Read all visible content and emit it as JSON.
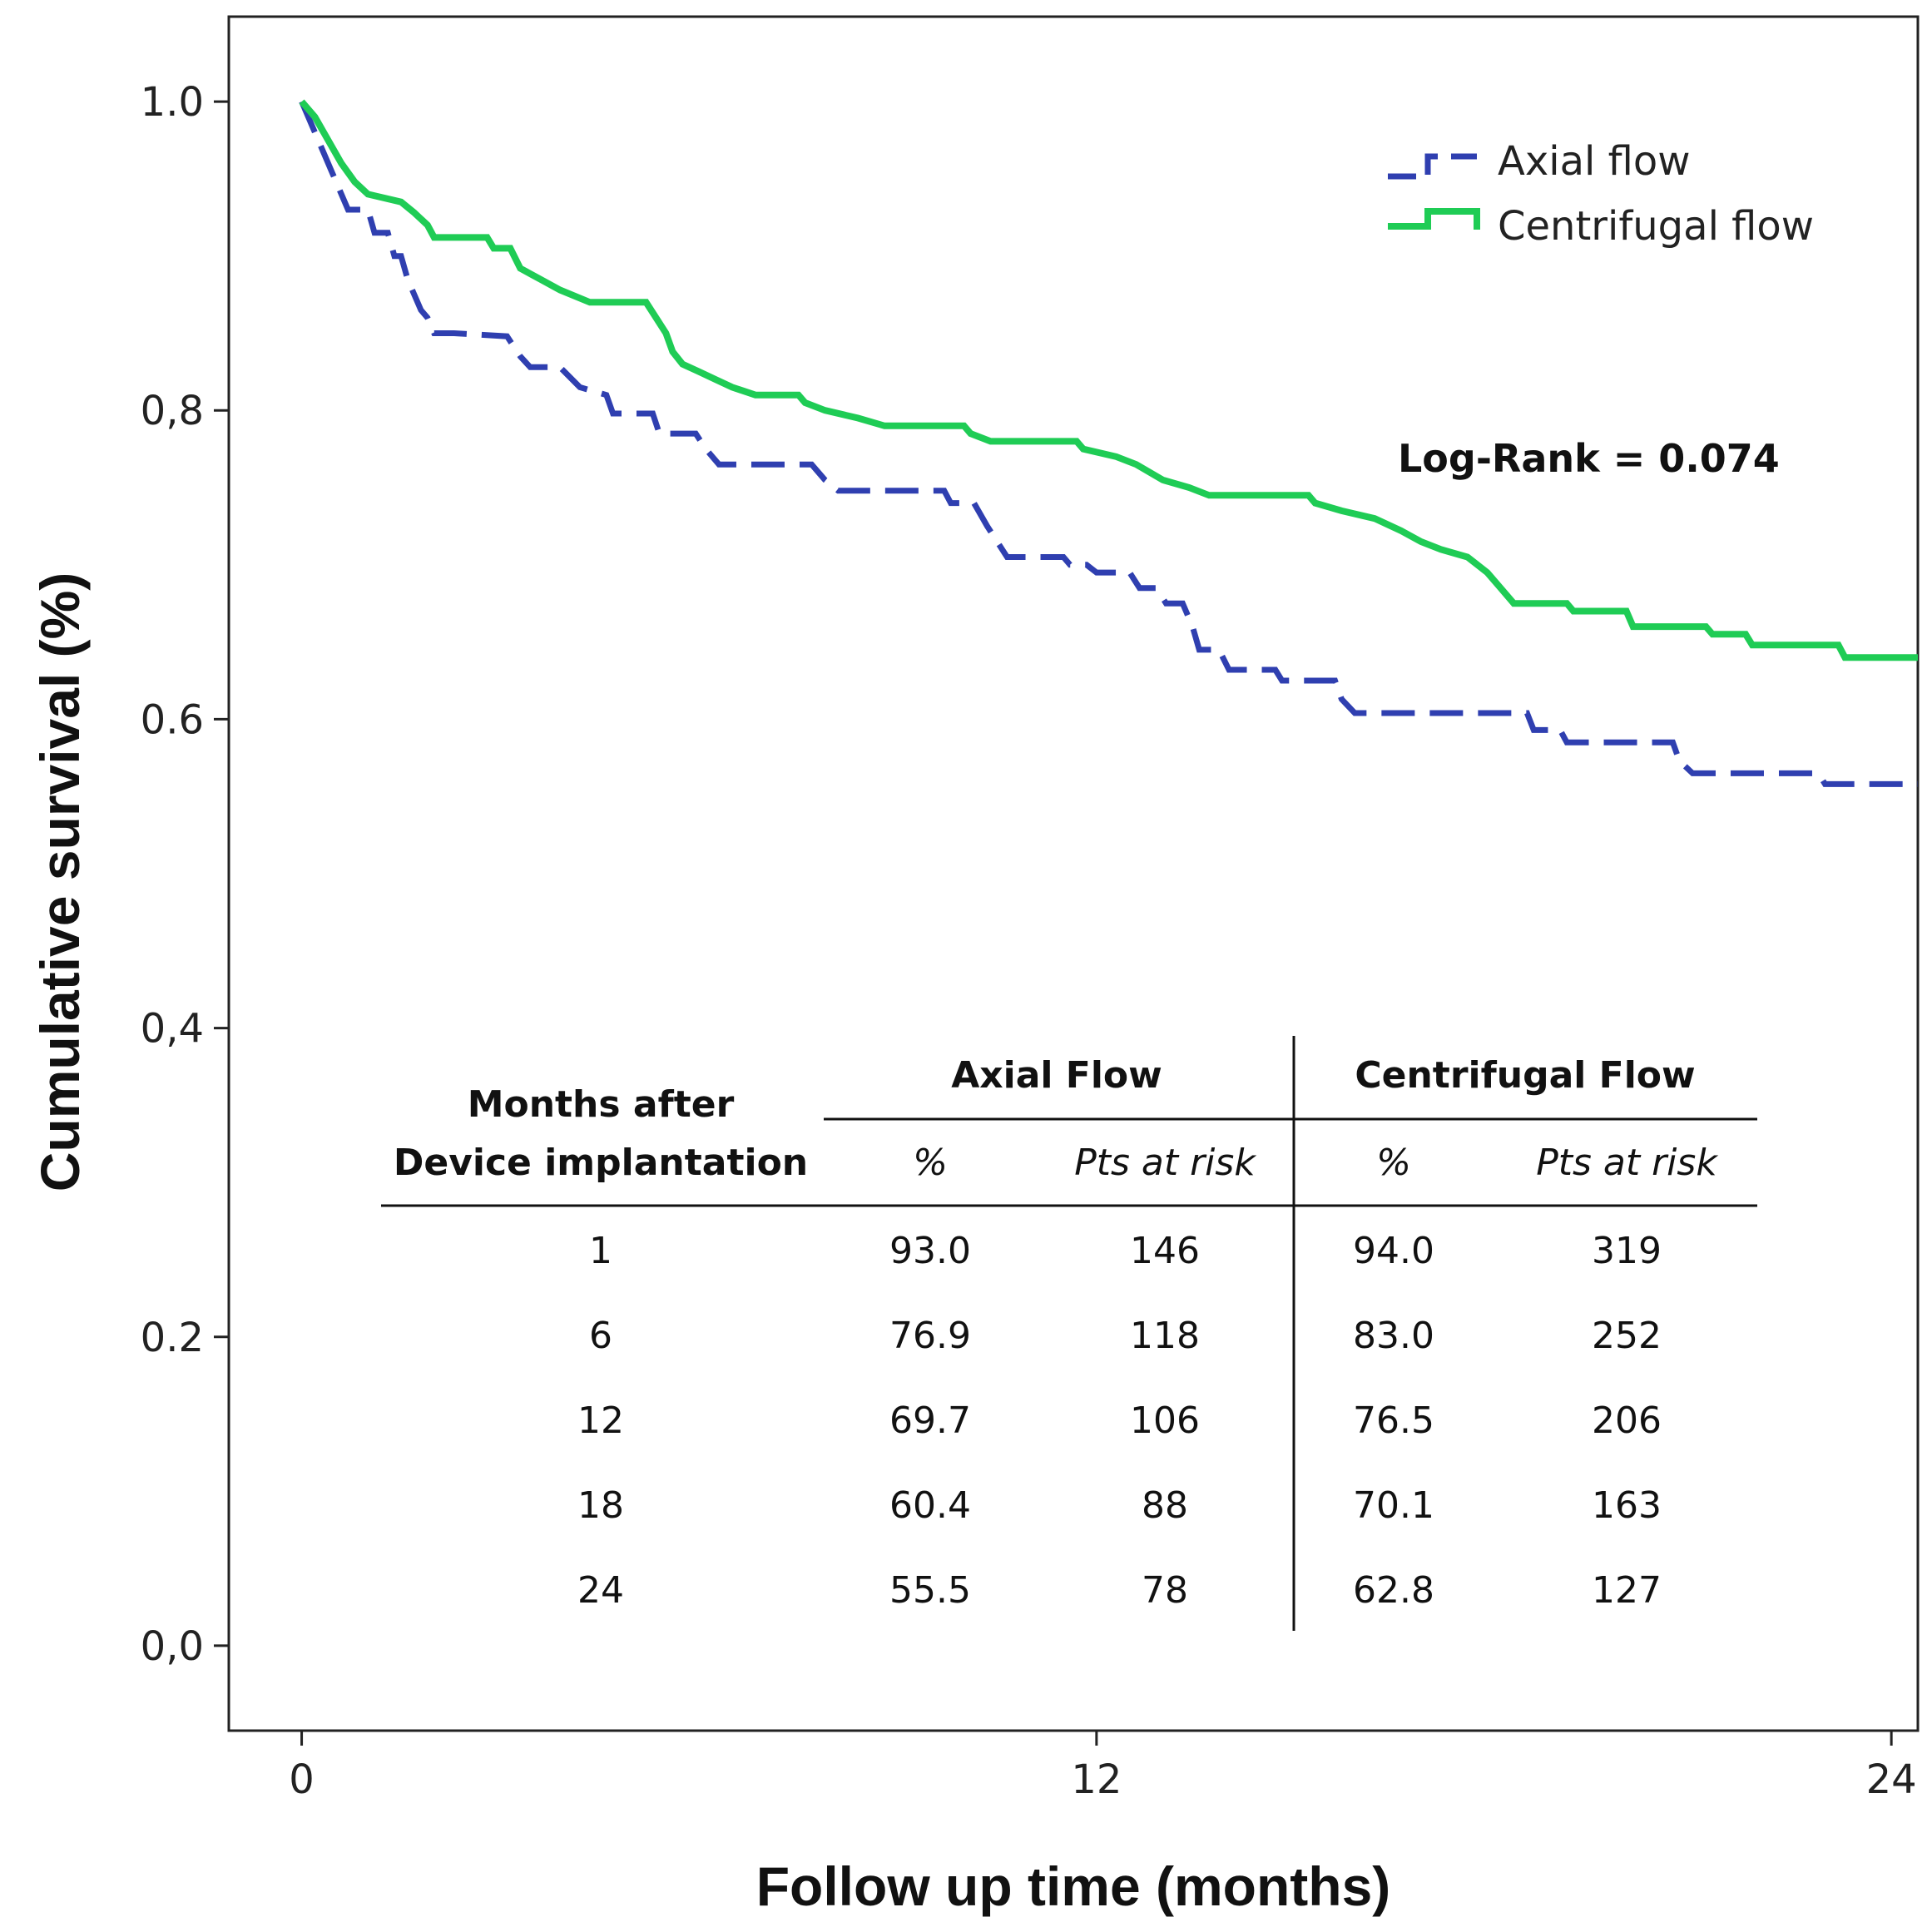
{
  "chart_data": {
    "type": "line",
    "xlabel": "Follow up time (months)",
    "ylabel": "Cumulative survival (%)",
    "xlim": [
      -1.1,
      24.4
    ],
    "ylim": [
      -0.055,
      1.055
    ],
    "x_ticks": [
      0,
      12,
      24
    ],
    "x_tick_labels": [
      "0",
      "12",
      "24"
    ],
    "y_ticks": [
      0.0,
      0.2,
      0.4,
      0.6,
      0.8,
      1.0
    ],
    "y_tick_labels": [
      "0,0",
      "0.2",
      "0,4",
      "0.6",
      "0,8",
      "1.0"
    ],
    "grid": false,
    "legend_position": "top-right",
    "series": [
      {
        "name": "Axial flow",
        "style": "dashed",
        "color": "#2f3fb0",
        "points": [
          [
            0,
            1.0
          ],
          [
            0.25,
            0.975
          ],
          [
            0.45,
            0.955
          ],
          [
            0.7,
            0.93
          ],
          [
            1.0,
            0.93
          ],
          [
            1.1,
            0.915
          ],
          [
            1.3,
            0.915
          ],
          [
            1.4,
            0.9
          ],
          [
            1.5,
            0.9
          ],
          [
            1.6,
            0.885
          ],
          [
            1.7,
            0.875
          ],
          [
            1.8,
            0.865
          ],
          [
            1.9,
            0.86
          ],
          [
            2.0,
            0.85
          ],
          [
            2.3,
            0.85
          ],
          [
            3.1,
            0.848
          ],
          [
            3.3,
            0.835
          ],
          [
            3.45,
            0.828
          ],
          [
            3.9,
            0.828
          ],
          [
            4.2,
            0.815
          ],
          [
            4.6,
            0.81
          ],
          [
            4.7,
            0.798
          ],
          [
            5.3,
            0.798
          ],
          [
            5.4,
            0.785
          ],
          [
            5.95,
            0.785
          ],
          [
            6.1,
            0.775
          ],
          [
            6.3,
            0.765
          ],
          [
            7.7,
            0.765
          ],
          [
            7.9,
            0.755
          ],
          [
            8.1,
            0.748
          ],
          [
            9.7,
            0.748
          ],
          [
            9.8,
            0.74
          ],
          [
            10.15,
            0.74
          ],
          [
            10.35,
            0.725
          ],
          [
            10.5,
            0.715
          ],
          [
            10.65,
            0.705
          ],
          [
            11.5,
            0.705
          ],
          [
            11.6,
            0.7
          ],
          [
            11.85,
            0.7
          ],
          [
            12.0,
            0.695
          ],
          [
            12.5,
            0.695
          ],
          [
            12.65,
            0.685
          ],
          [
            12.9,
            0.685
          ],
          [
            13.05,
            0.675
          ],
          [
            13.3,
            0.675
          ],
          [
            13.45,
            0.66
          ],
          [
            13.55,
            0.645
          ],
          [
            13.85,
            0.645
          ],
          [
            14.0,
            0.632
          ],
          [
            14.7,
            0.632
          ],
          [
            14.8,
            0.625
          ],
          [
            15.6,
            0.625
          ],
          [
            15.7,
            0.613
          ],
          [
            15.9,
            0.604
          ],
          [
            18.5,
            0.604
          ],
          [
            18.6,
            0.593
          ],
          [
            19.0,
            0.593
          ],
          [
            19.1,
            0.585
          ],
          [
            20.7,
            0.585
          ],
          [
            20.8,
            0.573
          ],
          [
            21.0,
            0.565
          ],
          [
            22.9,
            0.565
          ],
          [
            23.0,
            0.558
          ],
          [
            24.4,
            0.558
          ]
        ]
      },
      {
        "name": "Centrifugal flow",
        "style": "solid",
        "color": "#1fcc55",
        "points": [
          [
            0,
            1.0
          ],
          [
            0.2,
            0.99
          ],
          [
            0.4,
            0.975
          ],
          [
            0.6,
            0.96
          ],
          [
            0.8,
            0.948
          ],
          [
            1.0,
            0.94
          ],
          [
            1.5,
            0.935
          ],
          [
            1.7,
            0.928
          ],
          [
            1.9,
            0.92
          ],
          [
            2.0,
            0.912
          ],
          [
            2.8,
            0.912
          ],
          [
            2.9,
            0.905
          ],
          [
            3.15,
            0.905
          ],
          [
            3.3,
            0.892
          ],
          [
            3.6,
            0.885
          ],
          [
            3.9,
            0.878
          ],
          [
            4.35,
            0.87
          ],
          [
            5.2,
            0.87
          ],
          [
            5.35,
            0.86
          ],
          [
            5.5,
            0.85
          ],
          [
            5.6,
            0.838
          ],
          [
            5.75,
            0.83
          ],
          [
            6.0,
            0.825
          ],
          [
            6.25,
            0.82
          ],
          [
            6.5,
            0.815
          ],
          [
            6.85,
            0.81
          ],
          [
            7.5,
            0.81
          ],
          [
            7.6,
            0.805
          ],
          [
            7.9,
            0.8
          ],
          [
            8.4,
            0.795
          ],
          [
            8.8,
            0.79
          ],
          [
            10.0,
            0.79
          ],
          [
            10.1,
            0.785
          ],
          [
            10.4,
            0.78
          ],
          [
            11.7,
            0.78
          ],
          [
            11.8,
            0.775
          ],
          [
            12.3,
            0.77
          ],
          [
            12.6,
            0.765
          ],
          [
            13.0,
            0.755
          ],
          [
            13.4,
            0.75
          ],
          [
            13.7,
            0.745
          ],
          [
            15.2,
            0.745
          ],
          [
            15.3,
            0.74
          ],
          [
            15.7,
            0.735
          ],
          [
            16.2,
            0.73
          ],
          [
            16.6,
            0.722
          ],
          [
            16.9,
            0.715
          ],
          [
            17.2,
            0.71
          ],
          [
            17.6,
            0.705
          ],
          [
            17.9,
            0.695
          ],
          [
            18.1,
            0.685
          ],
          [
            18.3,
            0.675
          ],
          [
            19.1,
            0.675
          ],
          [
            19.2,
            0.67
          ],
          [
            20.0,
            0.67
          ],
          [
            20.1,
            0.66
          ],
          [
            21.2,
            0.66
          ],
          [
            21.3,
            0.655
          ],
          [
            21.8,
            0.655
          ],
          [
            21.9,
            0.648
          ],
          [
            23.2,
            0.648
          ],
          [
            23.3,
            0.64
          ],
          [
            24.4,
            0.64
          ]
        ]
      }
    ]
  },
  "legend": [
    {
      "label": "Axial flow"
    },
    {
      "label": "Centrifugal flow"
    }
  ],
  "annotation": "Log-Rank = 0.074",
  "table": {
    "row_header_line1": "Months after",
    "row_header_line2": "Device implantation",
    "group1": "Axial Flow",
    "group2": "Centrifugal Flow",
    "sub_pct": "%",
    "sub_risk": "Pts at risk",
    "rows": [
      [
        "1",
        "93.0",
        "146",
        "94.0",
        "319"
      ],
      [
        "6",
        "76.9",
        "118",
        "83.0",
        "252"
      ],
      [
        "12",
        "69.7",
        "106",
        "76.5",
        "206"
      ],
      [
        "18",
        "60.4",
        "88",
        "70.1",
        "163"
      ],
      [
        "24",
        "55.5",
        "78",
        "62.8",
        "127"
      ]
    ]
  }
}
